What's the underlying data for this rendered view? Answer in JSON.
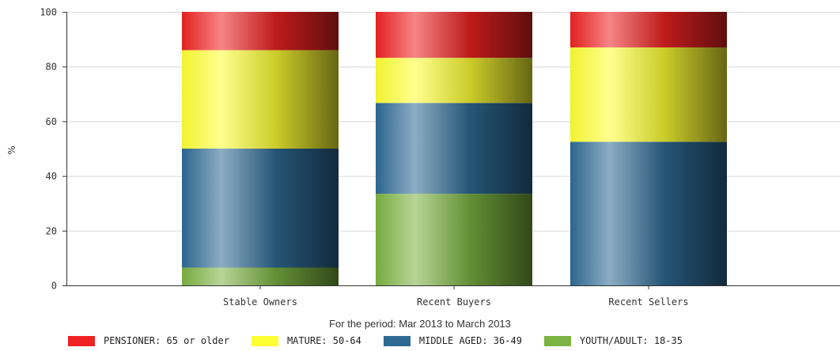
{
  "chart_data": {
    "type": "bar",
    "stacked": true,
    "categories": [
      "Stable Owners",
      "Recent Buyers",
      "Recent Sellers"
    ],
    "series": [
      {
        "name": "YOUTH/ADULT: 18-35",
        "color": "#7cb342",
        "values": [
          6.5,
          33.5,
          0
        ]
      },
      {
        "name": "MIDDLE AGED: 36-49",
        "color": "#2e6a94",
        "values": [
          43.5,
          33.2,
          52.5
        ]
      },
      {
        "name": "MATURE: 50-64",
        "color": "#ffff33",
        "values": [
          36,
          16.5,
          34.5
        ]
      },
      {
        "name": "PENSIONER: 65 or older",
        "color": "#ee2222",
        "values": [
          14,
          16.8,
          13
        ]
      }
    ],
    "ylabel": "%",
    "ylim": [
      0,
      100
    ],
    "yticks": [
      0,
      20,
      40,
      60,
      80,
      100
    ],
    "grid": true,
    "legend_position": "bottom"
  },
  "period_text": "For the period: Mar 2013 to March 2013",
  "legend": [
    {
      "label": "PENSIONER: 65 or older",
      "color": "#ee2222"
    },
    {
      "label": "MATURE: 50-64",
      "color": "#ffff33"
    },
    {
      "label": "MIDDLE AGED: 36-49",
      "color": "#2e6a94"
    },
    {
      "label": "YOUTH/ADULT: 18-35",
      "color": "#7cb342"
    }
  ]
}
